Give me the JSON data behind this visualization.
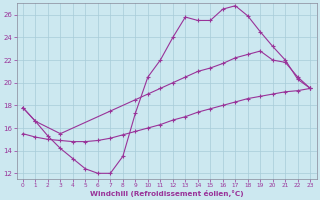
{
  "background_color": "#cce8f0",
  "grid_color": "#a8ccd8",
  "line_color": "#993399",
  "xlim": [
    -0.5,
    23.5
  ],
  "ylim": [
    11.5,
    27.0
  ],
  "xlabel": "Windchill (Refroidissement éolien,°C)",
  "yticks": [
    12,
    14,
    16,
    18,
    20,
    22,
    24,
    26
  ],
  "xticks": [
    0,
    1,
    2,
    3,
    4,
    5,
    6,
    7,
    8,
    9,
    10,
    11,
    12,
    13,
    14,
    15,
    16,
    17,
    18,
    19,
    20,
    21,
    22,
    23
  ],
  "curve1_x": [
    0,
    1,
    2,
    3,
    4,
    5,
    6,
    7,
    8,
    9,
    10,
    11,
    12,
    13,
    14,
    15,
    16,
    17,
    18,
    19,
    20,
    21,
    22,
    23
  ],
  "curve1_y": [
    17.8,
    16.6,
    15.3,
    14.2,
    13.3,
    12.4,
    12.0,
    12.0,
    13.5,
    17.3,
    20.5,
    22.0,
    24.0,
    25.8,
    25.5,
    25.5,
    26.5,
    26.8,
    25.9,
    24.5,
    23.2,
    22.0,
    20.3,
    19.5
  ],
  "curve2_x": [
    0,
    1,
    3,
    7,
    9,
    10,
    11,
    12,
    13,
    14,
    15,
    16,
    17,
    18,
    19,
    20,
    21,
    22,
    23
  ],
  "curve2_y": [
    17.8,
    16.6,
    15.5,
    17.5,
    18.5,
    19.0,
    19.5,
    20.0,
    20.5,
    21.0,
    21.3,
    21.7,
    22.2,
    22.5,
    22.8,
    22.0,
    21.8,
    20.5,
    19.5
  ],
  "curve3_x": [
    0,
    1,
    2,
    3,
    4,
    5,
    6,
    7,
    8,
    9,
    10,
    11,
    12,
    13,
    14,
    15,
    16,
    17,
    18,
    19,
    20,
    21,
    22,
    23
  ],
  "curve3_y": [
    15.5,
    15.2,
    15.0,
    14.9,
    14.8,
    14.8,
    14.9,
    15.1,
    15.4,
    15.7,
    16.0,
    16.3,
    16.7,
    17.0,
    17.4,
    17.7,
    18.0,
    18.3,
    18.6,
    18.8,
    19.0,
    19.2,
    19.3,
    19.5
  ]
}
